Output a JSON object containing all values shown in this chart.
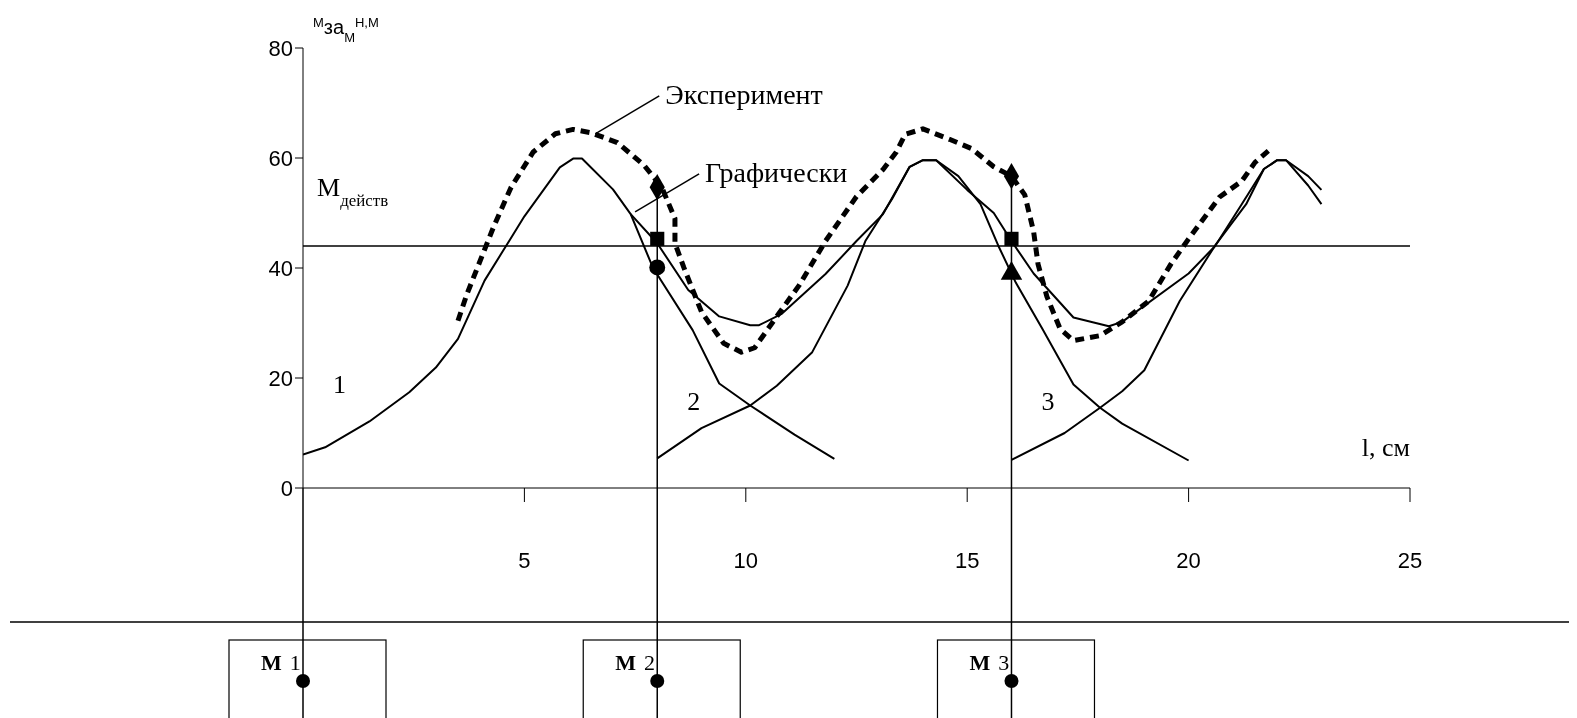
{
  "chart_data": {
    "type": "line",
    "ylabel": "$^{М}$за$_{М}$$^{Н,М}$",
    "xlabel": "l, см",
    "xlim": [
      0,
      25
    ],
    "xticks": [
      5,
      10,
      15,
      20,
      25
    ],
    "ylim": [
      0,
      80
    ],
    "yticks": [
      0,
      20,
      40,
      60,
      80
    ],
    "grid": false,
    "marker": "none",
    "line_style": "solid",
    "series": [
      {
        "color": "#000000",
        "x": [
          0,
          0.5,
          1.5,
          2.4,
          3.0,
          3.5,
          4.1,
          4.5,
          5.0,
          5.8,
          6.1,
          6.3,
          7.0,
          7.4,
          7.9,
          8.8,
          9.4,
          10.1,
          11.1,
          12.0
        ],
        "values": [
          6.1,
          7.4,
          12.1,
          17.4,
          21.9,
          27.1,
          37.7,
          42.9,
          49.4,
          58.3,
          59.9,
          59.9,
          54.3,
          49.8,
          40.1,
          28.7,
          19.0,
          15.0,
          9.7,
          5.3
        ]
      },
      {
        "color": "#000000",
        "x": [
          8.0,
          9.0,
          10.1,
          10.7,
          11.5,
          12.3,
          12.7,
          13.3,
          13.7,
          14.0,
          14.3,
          14.8,
          15.3,
          15.7,
          16.1,
          16.7,
          17.4,
          18.0,
          18.5,
          20.0
        ],
        "values": [
          5.4,
          10.9,
          15.0,
          18.6,
          24.7,
          36.8,
          44.9,
          52.5,
          58.4,
          59.6,
          59.6,
          56.7,
          51.6,
          44.1,
          37.3,
          28.9,
          18.8,
          14.6,
          11.7,
          5.0
        ]
      },
      {
        "color": "#000000",
        "x": [
          16.0,
          17.2,
          18.0,
          18.5,
          19.0,
          19.8,
          20.6,
          21.3,
          21.7,
          22.0,
          22.2,
          22.7,
          23.0
        ],
        "values": [
          5.1,
          10.0,
          14.6,
          17.6,
          21.4,
          34.0,
          44.1,
          51.6,
          58.0,
          59.6,
          59.6,
          55.0,
          51.6
        ]
      },
      {
        "color": "#000000",
        "x": [
          7.4,
          8.0,
          8.7,
          9.4,
          10.1,
          10.3,
          10.8,
          11.8,
          12.5,
          13.1,
          13.7,
          14.0,
          14.3,
          15.0,
          15.6,
          16.0,
          16.5,
          17.4,
          18.2,
          18.5,
          20.0,
          20.6,
          21.2,
          21.7,
          22.0,
          22.2,
          22.7,
          23.0
        ],
        "values": [
          49.8,
          44.5,
          36.0,
          31.2,
          29.6,
          29.6,
          31.6,
          38.9,
          44.9,
          49.8,
          58.4,
          59.6,
          59.6,
          54.2,
          50.0,
          44.9,
          39.0,
          31.0,
          29.4,
          30.2,
          39.0,
          44.0,
          51.6,
          58.0,
          59.6,
          59.6,
          56.7,
          54.2
        ]
      },
      {
        "color": "#000000",
        "line_style": "dashed",
        "x": [
          3.5,
          3.7,
          4.3,
          4.7,
          5.2,
          5.7,
          6.1,
          6.5,
          7.1,
          7.7,
          8.1,
          8.4,
          8.4,
          8.6,
          9.0,
          9.5,
          9.9,
          10.2,
          10.7,
          11.2,
          11.8,
          12.5,
          13.1,
          13.4,
          13.6,
          14.0,
          14.6,
          15.1,
          15.6,
          16.0,
          16.3,
          16.5,
          16.6,
          16.8,
          17.1,
          17.4,
          18.0,
          18.5,
          19.1,
          19.6,
          20.0,
          20.7,
          21.2,
          21.5,
          21.8
        ],
        "values": [
          30.4,
          35.2,
          47.4,
          54.7,
          61.1,
          64.4,
          65.2,
          64.6,
          62.8,
          58.7,
          54.7,
          49.0,
          44.5,
          40.1,
          32.0,
          26.3,
          24.7,
          25.5,
          31.2,
          36.8,
          44.9,
          53.0,
          57.9,
          61.1,
          64.3,
          65.3,
          63.4,
          61.7,
          58.4,
          56.7,
          53.3,
          46.6,
          40.7,
          34.8,
          28.9,
          26.8,
          27.7,
          30.2,
          34.0,
          40.7,
          45.3,
          52.9,
          55.8,
          59.2,
          61.3
        ]
      },
      {
        "type": "scatter",
        "color": "#000000",
        "marker": "diamond",
        "x": [
          8,
          16
        ],
        "values": [
          54.7,
          56.7
        ]
      },
      {
        "type": "scatter",
        "color": "#000000",
        "marker": "square",
        "x": [
          8,
          16
        ],
        "values": [
          45.3,
          45.3
        ]
      },
      {
        "type": "scatter",
        "color": "#000000",
        "marker": "circle",
        "x": [
          8
        ],
        "values": [
          40.1
        ]
      },
      {
        "type": "scatter",
        "color": "#000000",
        "marker": "triangle",
        "x": [
          16
        ],
        "values": [
          39.0
        ]
      }
    ],
    "ref_lines": [
      {
        "axis": "y",
        "value": 44,
        "label": "M$_{действ}$"
      },
      {
        "axis": "x",
        "value": 8
      },
      {
        "axis": "x",
        "value": 16
      }
    ],
    "annotations": [
      {
        "text": "Эксперимент",
        "x": 6.6,
        "y": 64.4
      },
      {
        "text": "Графически",
        "x": 7.5,
        "y": 50.2
      },
      "1",
      "2",
      "3",
      "М 1",
      "М 2",
      "М 3"
    ]
  }
}
